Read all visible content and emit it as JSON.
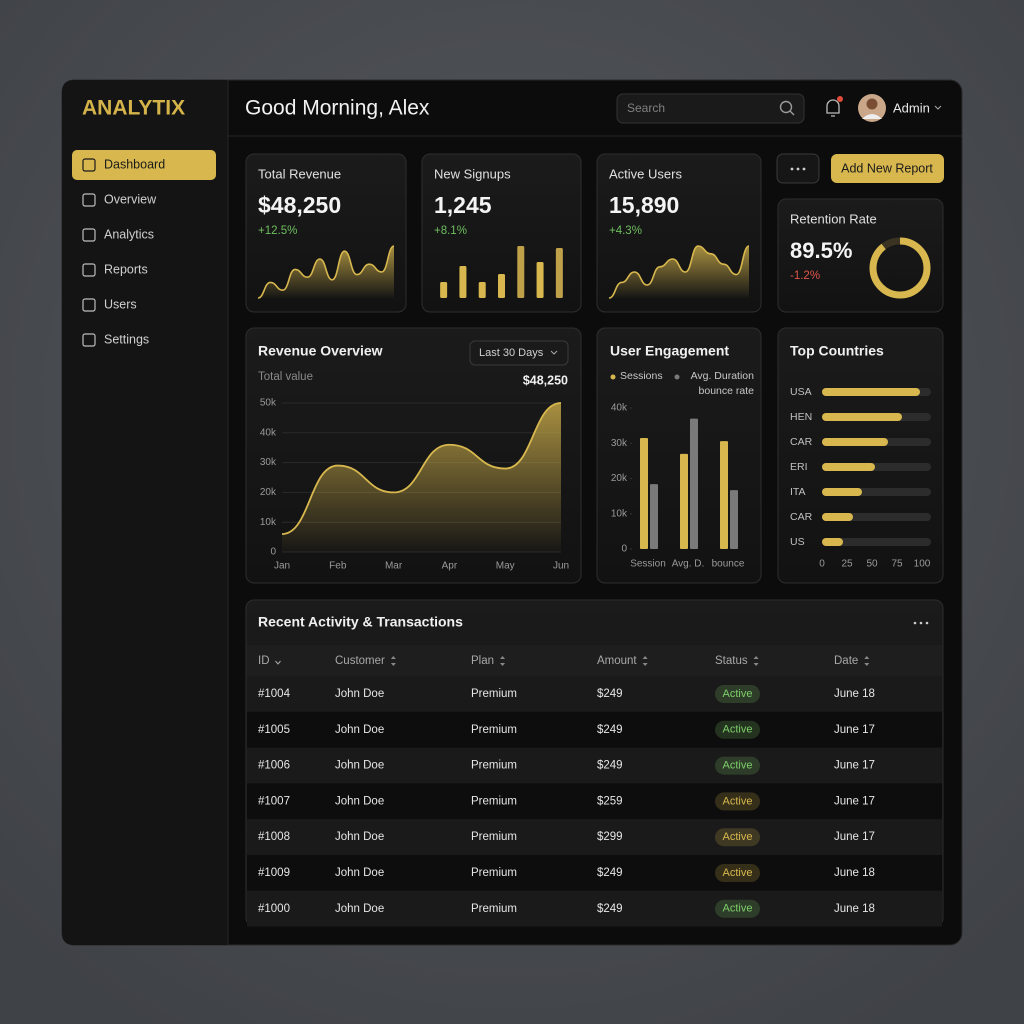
{
  "brand": "ANALYTIX",
  "nav": [
    "Dashboard",
    "Overview",
    "Analytics",
    "Reports",
    "Users",
    "Settings"
  ],
  "header": {
    "greeting": "Good Morning, Alex",
    "search_placeholder": "Search",
    "user": "Admin"
  },
  "kpis": [
    {
      "title": "Total Revenue",
      "value": "$48,250",
      "change": "+12.5%",
      "sparkline_type": "line",
      "sparkline": [
        8,
        20,
        14,
        30,
        24,
        38,
        22,
        44,
        26,
        34,
        28,
        48
      ]
    },
    {
      "title": "New Signups",
      "value": "1,245",
      "change": "+8.1%",
      "sparkline_type": "bar",
      "sparkline": [
        16,
        32,
        16,
        24,
        52,
        36,
        50
      ]
    },
    {
      "title": "Active Users",
      "value": "15,890",
      "change": "+4.3%",
      "sparkline_type": "line",
      "sparkline": [
        10,
        22,
        30,
        20,
        34,
        40,
        30,
        50,
        44,
        36,
        28,
        50
      ]
    }
  ],
  "actions": {
    "add_report": "Add New Report"
  },
  "retention": {
    "title": "Retention Rate",
    "value": "89.5%",
    "change": "-1.2%"
  },
  "chart_data": [
    {
      "type": "area",
      "title": "Revenue Overview",
      "dropdown": "Last 30 Days",
      "subtitle": "Total value",
      "annotation": "$48,250",
      "categories": [
        "Jan",
        "Feb",
        "Mar",
        "Apr",
        "May",
        "Jun"
      ],
      "values": [
        6000,
        29000,
        20000,
        36000,
        28000,
        50000
      ],
      "color": "#d8b84e",
      "ylim": [
        0,
        50000
      ],
      "yticks": [
        0,
        {
          "value": 10000,
          "label": "10k"
        },
        {
          "value": 20000,
          "label": "20k"
        },
        {
          "value": 30000,
          "label": "30k"
        },
        {
          "value": 40000,
          "label": "40k"
        },
        {
          "value": 50000,
          "label": "50k"
        }
      ],
      "grid": true
    },
    {
      "type": "bar",
      "title": "User Engagement",
      "categories": [
        "Session",
        "Avg. D.",
        "bounce"
      ],
      "series": [
        {
          "name": "Sessions",
          "color": "#d8b84e",
          "values": [
            31500,
            27000,
            30600
          ]
        },
        {
          "name": "Avg. Duration bounce rate",
          "color": "#7a7a7a",
          "values": [
            18400,
            37000,
            16700
          ]
        }
      ],
      "ylim": [
        0,
        40000
      ],
      "yticks": [
        0,
        {
          "value": 10000,
          "label": "10k"
        },
        {
          "value": 20000,
          "label": "20k"
        },
        {
          "value": 30000,
          "label": "30k"
        },
        {
          "value": 40000,
          "label": "40k"
        }
      ]
    },
    {
      "type": "hbar",
      "title": "Top Countries",
      "categories": [
        "USA",
        "HEN",
        "CAR",
        "ERI",
        "ITA",
        "CAR",
        "US"
      ],
      "values": [
        98,
        80,
        66,
        53,
        40,
        31,
        21
      ],
      "color": "#d8b84e",
      "xlim": [
        0,
        100
      ],
      "xticks": [
        0,
        25,
        50,
        75,
        100
      ]
    }
  ],
  "table": {
    "title": "Recent Activity & Transactions",
    "columns": [
      "ID",
      "Customer",
      "Plan",
      "Amount",
      "Status",
      "Date"
    ],
    "rows": [
      {
        "cells": [
          "#1004",
          "John Doe",
          "Premium",
          "$249",
          "Active",
          "June 18"
        ],
        "status_color": "#7fcf6a"
      },
      {
        "cells": [
          "#1005",
          "John Doe",
          "Premium",
          "$249",
          "Active",
          "June 17"
        ],
        "status_color": "#7fcf6a"
      },
      {
        "cells": [
          "#1006",
          "John Doe",
          "Premium",
          "$249",
          "Active",
          "June 17"
        ],
        "status_color": "#7fcf6a"
      },
      {
        "cells": [
          "#1007",
          "John Doe",
          "Premium",
          "$259",
          "Active",
          "June 17"
        ],
        "status_color": "#d8b84e"
      },
      {
        "cells": [
          "#1008",
          "John Doe",
          "Premium",
          "$299",
          "Active",
          "June 17"
        ],
        "status_color": "#d8b84e"
      },
      {
        "cells": [
          "#1009",
          "John Doe",
          "Premium",
          "$249",
          "Active",
          "June 18"
        ],
        "status_color": "#d8b84e"
      },
      {
        "cells": [
          "#1000",
          "John Doe",
          "Premium",
          "$249",
          "Active",
          "June 18"
        ],
        "status_color": "#7fcf6a"
      }
    ]
  }
}
